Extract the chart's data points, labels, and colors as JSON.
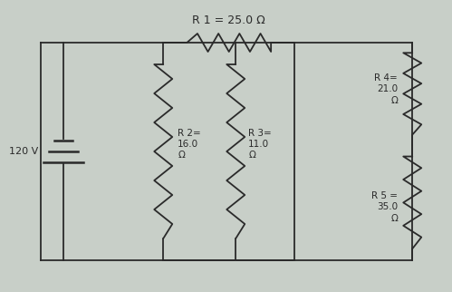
{
  "background_color": "#c8cfc8",
  "wire_color": "#2a2a2a",
  "text_color": "#2a2a2a",
  "battery_label": "120 V",
  "r1_label": "R 1 = 25.0 Ω",
  "r2_label": "R 2=\n16.0\nΩ",
  "r3_label": "R 3=\n11.0\nΩ",
  "r4_label": "R 4=\n21.0\nΩ",
  "r5_label": "R 5 =\n35.0\nΩ",
  "lw": 1.3,
  "font_size": 7.5
}
